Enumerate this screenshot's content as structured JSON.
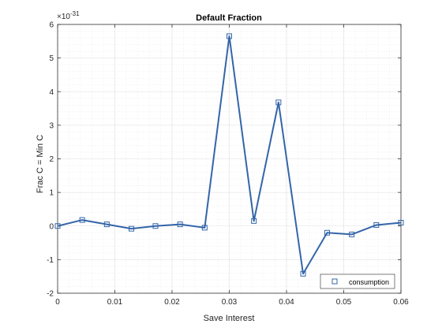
{
  "chart_data": {
    "type": "line",
    "title": "Default Fraction",
    "xlabel": "Save Interest",
    "ylabel": "Frac C = Min C",
    "y_exponent": "×10",
    "y_exponent_power": "-31",
    "xlim": [
      0,
      0.06
    ],
    "ylim": [
      -2,
      6
    ],
    "x_ticks": [
      0,
      0.01,
      0.02,
      0.03,
      0.04,
      0.05,
      0.06
    ],
    "x_tick_labels": [
      "0",
      "0.01",
      "0.02",
      "0.03",
      "0.04",
      "0.05",
      "0.06"
    ],
    "y_ticks": [
      -2,
      -1,
      0,
      1,
      2,
      3,
      4,
      5,
      6
    ],
    "y_tick_labels": [
      "-2",
      "-1",
      "0",
      "1",
      "2",
      "3",
      "4",
      "5",
      "6"
    ],
    "grid": true,
    "minor_grid": true,
    "legend_position": "bottom-right",
    "series": [
      {
        "name": "consumption",
        "color": "#3465a9",
        "marker": "square",
        "x": [
          0,
          0.0043,
          0.0086,
          0.0129,
          0.0171,
          0.0214,
          0.0257,
          0.03,
          0.0343,
          0.0386,
          0.0429,
          0.0471,
          0.0514,
          0.0557,
          0.06
        ],
        "y": [
          0,
          0.18,
          0.05,
          -0.08,
          0.0,
          0.05,
          -0.05,
          5.65,
          0.15,
          3.68,
          -1.42,
          -0.2,
          -0.25,
          0.03,
          0.1
        ]
      }
    ]
  }
}
